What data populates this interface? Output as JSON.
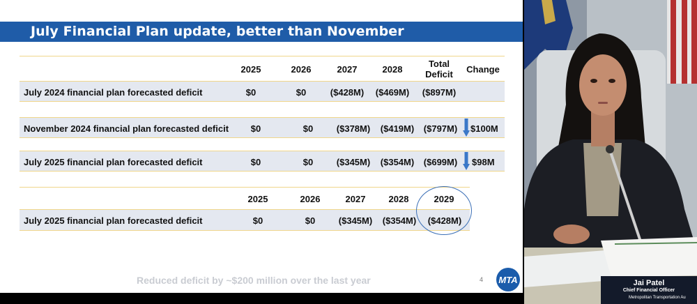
{
  "slide": {
    "title": "July Financial Plan update, better than November",
    "table1": {
      "headers": [
        "2025",
        "2026",
        "2027",
        "2028",
        "Total Deficit",
        "Change"
      ],
      "header_total_line1": "Total",
      "header_total_line2": "Deficit",
      "rows": [
        {
          "label": "July 2024 financial plan forecasted deficit",
          "values": [
            "$0",
            "$0",
            "($428M)",
            "($469M)",
            "($897M)"
          ],
          "change": ""
        },
        {
          "label": "November 2024 financial plan forecasted deficit",
          "values": [
            "$0",
            "$0",
            "($378M)",
            "($419M)",
            "($797M)"
          ],
          "change": "$100M"
        },
        {
          "label": "July 2025 financial plan forecasted deficit",
          "values": [
            "$0",
            "$0",
            "($345M)",
            "($354M)",
            "($699M)"
          ],
          "change": "$98M"
        }
      ]
    },
    "table2": {
      "headers": [
        "2025",
        "2026",
        "2027",
        "2028",
        "2029"
      ],
      "row": {
        "label": "July 2025 financial plan forecasted deficit",
        "values": [
          "$0",
          "$0",
          "($345M)",
          "($354M)",
          "($428M)"
        ]
      }
    },
    "footnote": "Reduced deficit by ~$200 million over the last year",
    "page_number": "4",
    "logo_text": "MTA",
    "colors": {
      "header_blue": "#1f5ca8",
      "band": "#e4e8f0",
      "rule_gold": "#f0d68a",
      "arrow_blue": "#3b78c8"
    }
  },
  "video": {
    "speaker_name": "Jai Patel",
    "speaker_role": "Chief Financial Officer",
    "organization": "Metropolitan Transportation Au"
  }
}
